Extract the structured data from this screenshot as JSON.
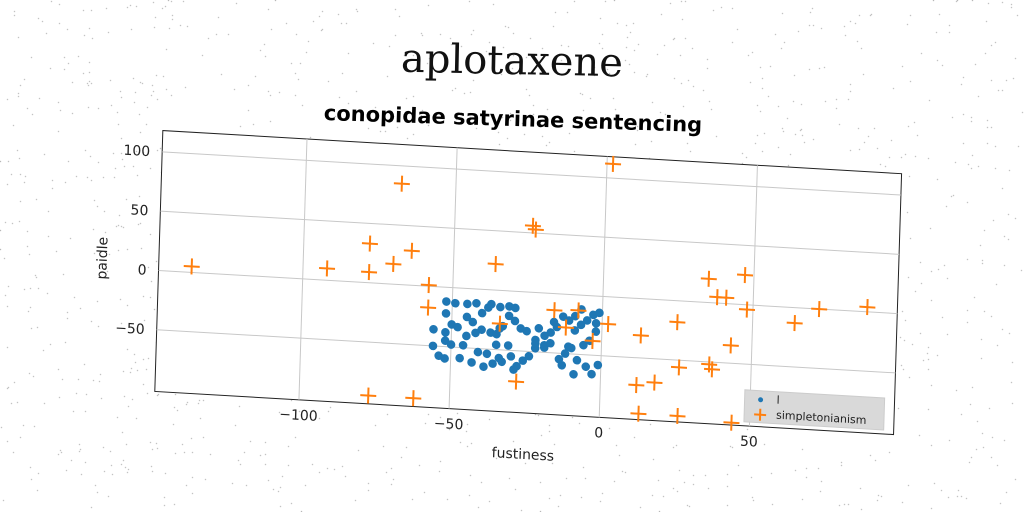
{
  "figure": {
    "title": "aplotaxene"
  },
  "chart_data": {
    "type": "scatter",
    "title": "conopidae satyrinae sentencing",
    "xlabel": "fustiness",
    "ylabel": "paidle",
    "xlim": [
      -148,
      98
    ],
    "ylim": [
      -102,
      118
    ],
    "xticks": [
      -100,
      -50,
      0,
      50
    ],
    "yticks": [
      100,
      50,
      0,
      -50
    ],
    "grid": true,
    "legend_position": "lower-right",
    "series": [
      {
        "name": "l",
        "marker": "dot",
        "color": "#1f77b4",
        "points": [
          [
            -52,
            -12
          ],
          [
            -49,
            -13
          ],
          [
            -45,
            -13
          ],
          [
            -42,
            -12
          ],
          [
            -38,
            -15
          ],
          [
            -34,
            -14
          ],
          [
            -31,
            -13
          ],
          [
            -29,
            -14
          ],
          [
            -52,
            -22
          ],
          [
            -50,
            -31
          ],
          [
            -48,
            -33
          ],
          [
            -45,
            -24
          ],
          [
            -43,
            -28
          ],
          [
            -40,
            -34
          ],
          [
            -37,
            -36
          ],
          [
            -35,
            -37
          ],
          [
            -33,
            -30
          ],
          [
            -31,
            -21
          ],
          [
            -29,
            -25
          ],
          [
            -27,
            -31
          ],
          [
            -25,
            -33
          ],
          [
            -22,
            -40
          ],
          [
            -19,
            -44
          ],
          [
            -42,
            -37
          ],
          [
            -45,
            -40
          ],
          [
            -52,
            -38
          ],
          [
            -56,
            -36
          ],
          [
            -52,
            -45
          ],
          [
            -46,
            -48
          ],
          [
            -41,
            -53
          ],
          [
            -38,
            -54
          ],
          [
            -34,
            -57
          ],
          [
            -30,
            -55
          ],
          [
            -28,
            -63
          ],
          [
            -26,
            -58
          ],
          [
            -24,
            -54
          ],
          [
            -22,
            -47
          ],
          [
            -56,
            -50
          ],
          [
            -54,
            -58
          ],
          [
            -52,
            -60
          ],
          [
            -47,
            -59
          ],
          [
            -43,
            -62
          ],
          [
            -39,
            -65
          ],
          [
            -36,
            -62
          ],
          [
            -33,
            -60
          ],
          [
            -29,
            -66
          ],
          [
            -22,
            -43
          ],
          [
            -19,
            -46
          ],
          [
            -17,
            -33
          ],
          [
            -15,
            -28
          ],
          [
            -13,
            -19
          ],
          [
            -11,
            -22
          ],
          [
            -9,
            -30
          ],
          [
            -7,
            -25
          ],
          [
            -5,
            -21
          ],
          [
            -3,
            -16
          ],
          [
            -1,
            -14
          ],
          [
            -2,
            -30
          ],
          [
            -4,
            -38
          ],
          [
            -6,
            -42
          ],
          [
            -10,
            -45
          ],
          [
            -12,
            -50
          ],
          [
            -14,
            -55
          ],
          [
            -8,
            -55
          ],
          [
            -5,
            -60
          ],
          [
            -1,
            -58
          ],
          [
            -3,
            -66
          ],
          [
            -9,
            -67
          ],
          [
            -13,
            -60
          ],
          [
            -17,
            -42
          ],
          [
            -19,
            -36
          ],
          [
            -11,
            -44
          ],
          [
            -7,
            -12
          ],
          [
            -9,
            -18
          ],
          [
            -37,
            -12
          ],
          [
            -34,
            -32
          ],
          [
            -40,
            -20
          ],
          [
            -50,
            -48
          ],
          [
            -21,
            -30
          ],
          [
            -16,
            -24
          ],
          [
            -2,
            -23
          ],
          [
            -31,
            -46
          ],
          [
            -35,
            -46
          ]
        ]
      },
      {
        "name": "simpletonianism",
        "marker": "plus",
        "color": "#ff7f0e",
        "points": [
          [
            2,
            112
          ],
          [
            -68,
            85
          ],
          [
            -24,
            56
          ],
          [
            -23,
            53
          ],
          [
            -78,
            33
          ],
          [
            -64,
            29
          ],
          [
            -36,
            22
          ],
          [
            -70,
            17
          ],
          [
            -92,
            10
          ],
          [
            -78,
            9
          ],
          [
            -137,
            5
          ],
          [
            -58,
            1
          ],
          [
            -58,
            -18
          ],
          [
            -34,
            -28
          ],
          [
            -16,
            -14
          ],
          [
            -12,
            -28
          ],
          [
            -8,
            -13
          ],
          [
            -3,
            -38
          ],
          [
            2,
            -23
          ],
          [
            13,
            -31
          ],
          [
            25,
            -18
          ],
          [
            35,
            20
          ],
          [
            47,
            25
          ],
          [
            38,
            5
          ],
          [
            41,
            5
          ],
          [
            48,
            -4
          ],
          [
            64,
            -13
          ],
          [
            72,
            0
          ],
          [
            88,
            4
          ],
          [
            43,
            -35
          ],
          [
            36,
            -52
          ],
          [
            37,
            -56
          ],
          [
            26,
            -56
          ],
          [
            12,
            -73
          ],
          [
            18,
            -70
          ],
          [
            -28,
            -76
          ],
          [
            13,
            -97
          ],
          [
            26,
            -97
          ],
          [
            44,
            -100
          ],
          [
            -77,
            -95
          ],
          [
            -62,
            -95
          ]
        ]
      }
    ]
  }
}
